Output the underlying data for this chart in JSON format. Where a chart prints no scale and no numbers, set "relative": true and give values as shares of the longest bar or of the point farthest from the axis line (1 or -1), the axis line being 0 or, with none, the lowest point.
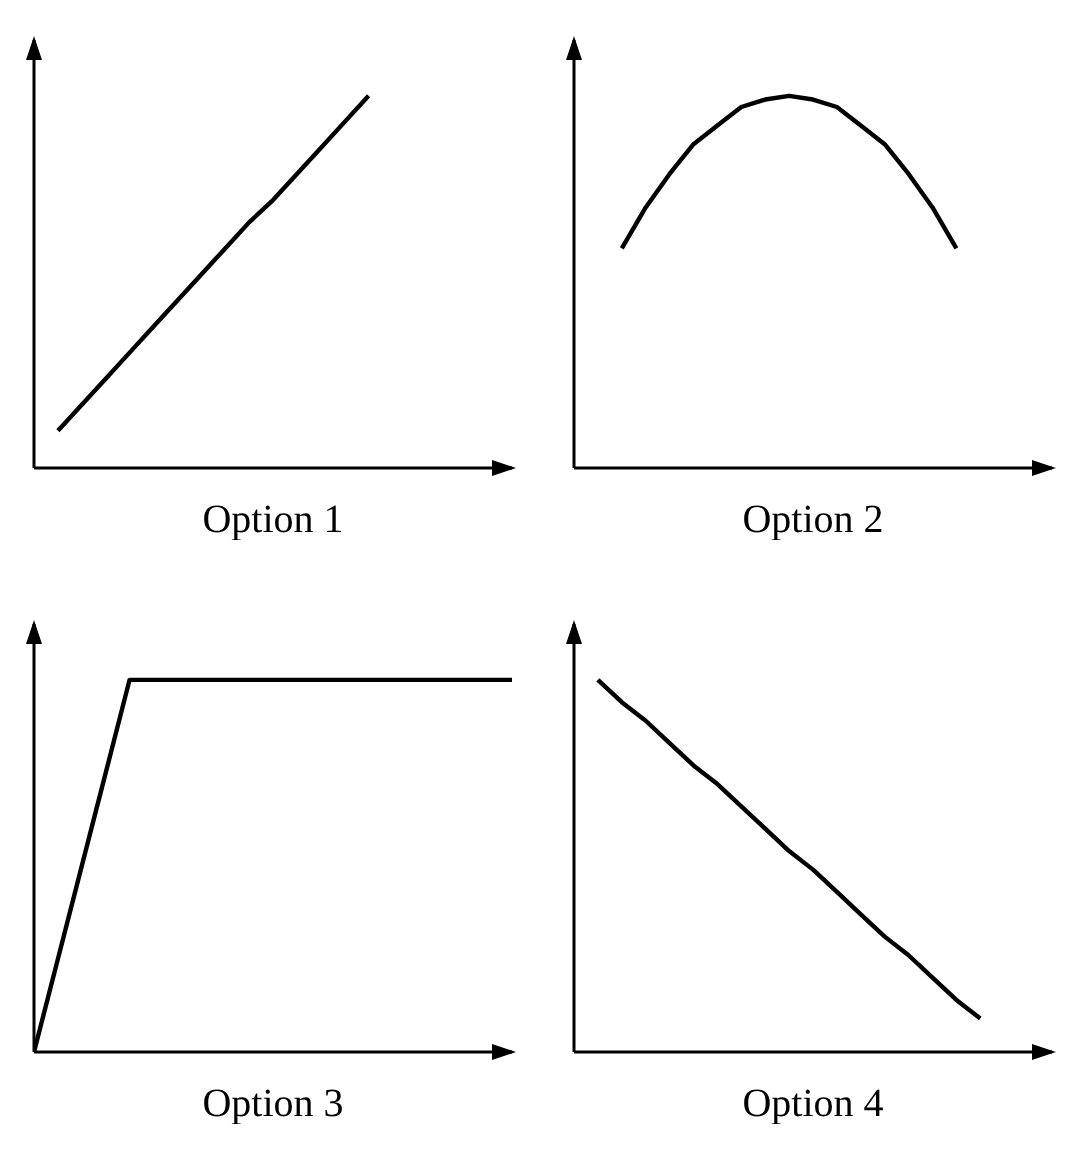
{
  "chart_data": [
    {
      "type": "line",
      "relative": true,
      "xlabel": "Option 1",
      "marker": "none",
      "line_style": "solid",
      "categories": [
        null,
        null,
        null,
        null,
        null,
        null,
        null,
        null,
        null,
        null,
        null,
        null,
        null,
        null,
        null,
        null,
        null,
        null,
        null,
        null,
        null
      ],
      "color": "#000000",
      "values": [
        null,
        0.1,
        0.17,
        0.24,
        0.31,
        0.38,
        0.45,
        0.52,
        0.59,
        0.66,
        0.72,
        0.79,
        0.86,
        0.93,
        1.0,
        null,
        null,
        null,
        null,
        null,
        null
      ]
    },
    {
      "type": "line",
      "relative": true,
      "xlabel": "Option 2",
      "marker": "none",
      "line_style": "solid",
      "categories": [
        null,
        null,
        null,
        null,
        null,
        null,
        null,
        null,
        null,
        null,
        null,
        null,
        null,
        null,
        null,
        null,
        null,
        null,
        null,
        null,
        null
      ],
      "color": "#000000",
      "values": [
        null,
        null,
        0.59,
        0.7,
        0.79,
        0.87,
        0.92,
        0.97,
        0.99,
        1.0,
        0.99,
        0.97,
        0.92,
        0.87,
        0.79,
        0.7,
        0.59,
        null,
        null,
        null,
        null
      ]
    },
    {
      "type": "line",
      "relative": true,
      "xlabel": "Option 3",
      "marker": "none",
      "line_style": "solid",
      "categories": [
        null,
        null,
        null,
        null,
        null,
        null,
        null,
        null,
        null,
        null,
        null,
        null,
        null,
        null,
        null,
        null,
        null,
        null,
        null,
        null,
        null
      ],
      "color": "#000000",
      "values": [
        0,
        0.25,
        0.5,
        0.75,
        1,
        1,
        1,
        1,
        1,
        1,
        1,
        1,
        1,
        1,
        1,
        1,
        1,
        1,
        1,
        1,
        1
      ]
    },
    {
      "type": "line",
      "relative": true,
      "xlabel": "Option 4",
      "marker": "none",
      "line_style": "solid",
      "categories": [
        null,
        null,
        null,
        null,
        null,
        null,
        null,
        null,
        null,
        null,
        null,
        null,
        null,
        null,
        null,
        null,
        null,
        null,
        null,
        null,
        null
      ],
      "color": "#000000",
      "values": [
        null,
        1,
        0.94,
        0.89,
        0.83,
        0.77,
        0.72,
        0.66,
        0.6,
        0.54,
        0.49,
        0.43,
        0.37,
        0.31,
        0.26,
        0.2,
        0.14,
        0.09,
        null,
        null,
        null
      ]
    }
  ]
}
